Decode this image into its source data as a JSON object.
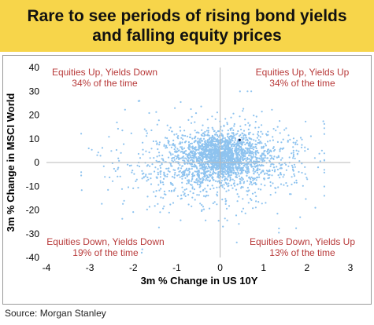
{
  "title": "Rare to see periods of rising bond yields and falling equity prices",
  "source": "Source: Morgan Stanley",
  "colors": {
    "header_bg": "#f7d54a",
    "points": "#8ec3ef",
    "highlight_point": "#1a2a5a",
    "quadrant_text": "#b83a3a",
    "axis_line": "#b8b8b8"
  },
  "chart_data": {
    "type": "scatter",
    "xlabel": "3m % Change in US 10Y",
    "ylabel": "3m % Change in MSCI World",
    "xlim": [
      -4,
      3
    ],
    "ylim": [
      -40,
      40
    ],
    "x_ticks": [
      -4,
      -3,
      -2,
      -1,
      0,
      1,
      2,
      3
    ],
    "y_ticks": [
      -40,
      -30,
      -20,
      -10,
      0,
      10,
      20,
      30,
      40
    ],
    "grid": false,
    "point_count": 2600,
    "highlight_point": {
      "x": 0.45,
      "y": 9.5
    },
    "annotations": [
      {
        "name": "top-left",
        "line1": "Equities Up, Yields Down",
        "line2": "34% of the time"
      },
      {
        "name": "top-right",
        "line1": "Equities Up, Yields Up",
        "line2": "34% of the time"
      },
      {
        "name": "bottom-left",
        "line1": "Equities Down, Yields Down",
        "line2": "19% of the time"
      },
      {
        "name": "bottom-right",
        "line1": "Equities Down, Yields Up",
        "line2": "13% of the time"
      }
    ]
  }
}
